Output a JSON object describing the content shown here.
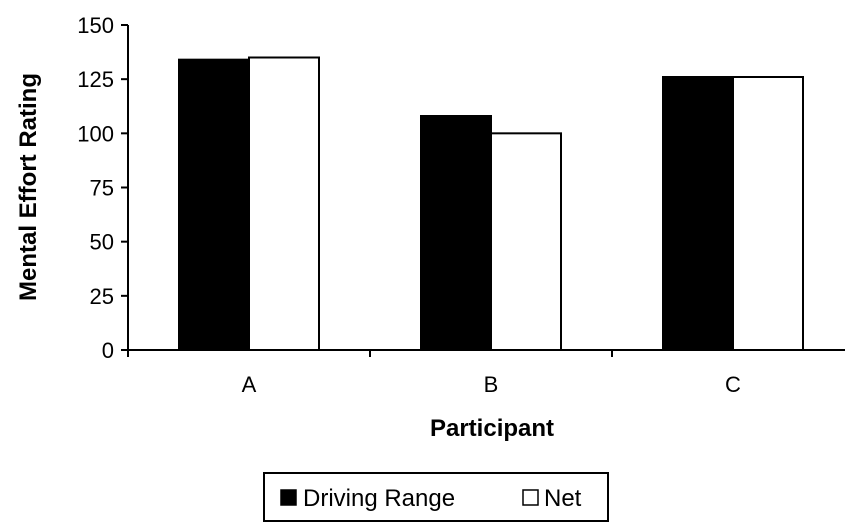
{
  "chart_data": {
    "type": "bar",
    "categories": [
      "A",
      "B",
      "C"
    ],
    "series": [
      {
        "name": "Driving Range",
        "values": [
          134,
          108,
          126
        ],
        "color": "#000000"
      },
      {
        "name": "Net",
        "values": [
          135,
          100,
          126
        ],
        "color": "#ffffff"
      }
    ],
    "xlabel": "Participant",
    "ylabel": "Mental Effort Rating",
    "ylim": [
      0,
      150
    ],
    "yticks": [
      0,
      25,
      50,
      75,
      100,
      125,
      150
    ],
    "grid": false,
    "legend_position": "bottom"
  }
}
